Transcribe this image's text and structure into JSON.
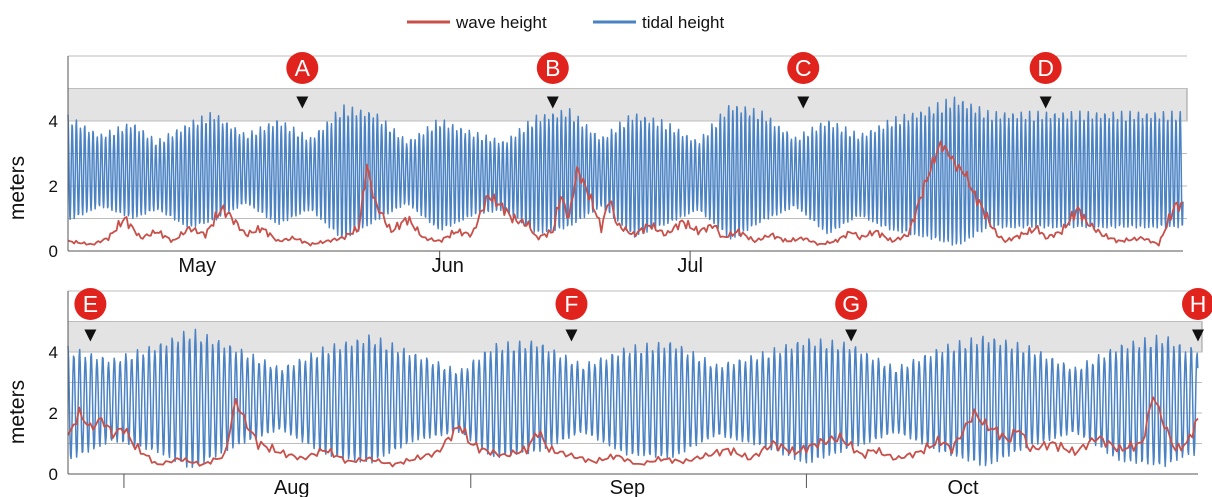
{
  "chart_data": {
    "type": "line",
    "legend": {
      "placement": "top-center",
      "entries": [
        {
          "name": "wave height",
          "color": "#c8504b"
        },
        {
          "name": "tidal height",
          "color": "#4a82c3"
        }
      ]
    },
    "colors": {
      "wave": "#c8504b",
      "tide": "#4a82c3",
      "band": "#e3e3e3",
      "marker": "#e0231c",
      "grid": "#bdbdbd"
    },
    "panels": [
      {
        "ylabel": "meters",
        "ylim": [
          0,
          6
        ],
        "yticks": [
          0,
          2,
          4
        ],
        "band": [
          4,
          5
        ],
        "x_range": [
          "Apr 15",
          "Jul 30"
        ],
        "months": [
          {
            "label": "May",
            "day": 16
          },
          {
            "label": "Jun",
            "day": 47
          },
          {
            "label": "Jul",
            "day": 77
          }
        ],
        "boundaries": [
          46,
          77
        ],
        "markers": [
          {
            "label": "A",
            "day": 29
          },
          {
            "label": "B",
            "day": 60
          },
          {
            "label": "C",
            "day": 91
          },
          {
            "label": "D",
            "day": 121
          }
        ],
        "tide_spring_neap": [
          {
            "day": 0,
            "low": 0.8,
            "high": 4.2
          },
          {
            "day": 4,
            "low": 1.3,
            "high": 3.6
          },
          {
            "day": 8,
            "low": 0.9,
            "high": 4.0
          },
          {
            "day": 11,
            "low": 1.2,
            "high": 3.4
          },
          {
            "day": 15,
            "low": 0.6,
            "high": 4.0
          },
          {
            "day": 18,
            "low": 0.8,
            "high": 4.3
          },
          {
            "day": 22,
            "low": 1.4,
            "high": 3.6
          },
          {
            "day": 26,
            "low": 0.7,
            "high": 4.1
          },
          {
            "day": 30,
            "low": 1.2,
            "high": 3.5
          },
          {
            "day": 34,
            "low": 0.2,
            "high": 4.5
          },
          {
            "day": 38,
            "low": 0.8,
            "high": 4.3
          },
          {
            "day": 42,
            "low": 1.4,
            "high": 3.4
          },
          {
            "day": 46,
            "low": 0.5,
            "high": 4.1
          },
          {
            "day": 50,
            "low": 1.0,
            "high": 3.7
          },
          {
            "day": 54,
            "low": 1.2,
            "high": 3.4
          },
          {
            "day": 58,
            "low": 0.4,
            "high": 4.2
          },
          {
            "day": 62,
            "low": 0.6,
            "high": 4.4
          },
          {
            "day": 66,
            "low": 1.3,
            "high": 3.5
          },
          {
            "day": 70,
            "low": 0.3,
            "high": 4.3
          },
          {
            "day": 74,
            "low": 0.7,
            "high": 4.0
          },
          {
            "day": 78,
            "low": 1.2,
            "high": 3.4
          },
          {
            "day": 82,
            "low": 0.2,
            "high": 4.6
          },
          {
            "day": 86,
            "low": 0.8,
            "high": 4.3
          },
          {
            "day": 90,
            "low": 1.3,
            "high": 3.5
          },
          {
            "day": 94,
            "low": 0.4,
            "high": 4.1
          },
          {
            "day": 98,
            "low": 1.0,
            "high": 3.6
          },
          {
            "day": 102,
            "low": 0.5,
            "high": 4.1
          },
          {
            "day": 106,
            "low": 0.3,
            "high": 4.4
          },
          {
            "day": 110,
            "low": 0.0,
            "high": 4.8
          },
          {
            "day": 114,
            "low": 0.6,
            "high": 4.3
          }
        ],
        "wave": [
          {
            "day": 0,
            "value": 0.3
          },
          {
            "day": 3,
            "value": 0.2
          },
          {
            "day": 5,
            "value": 0.4
          },
          {
            "day": 7,
            "value": 1.0
          },
          {
            "day": 9,
            "value": 0.4
          },
          {
            "day": 11,
            "value": 0.6
          },
          {
            "day": 13,
            "value": 0.3
          },
          {
            "day": 15,
            "value": 0.7
          },
          {
            "day": 17,
            "value": 0.5
          },
          {
            "day": 19,
            "value": 1.3
          },
          {
            "day": 20,
            "value": 1.1
          },
          {
            "day": 22,
            "value": 0.5
          },
          {
            "day": 24,
            "value": 0.7
          },
          {
            "day": 26,
            "value": 0.3
          },
          {
            "day": 28,
            "value": 0.4
          },
          {
            "day": 30,
            "value": 0.2
          },
          {
            "day": 32,
            "value": 0.3
          },
          {
            "day": 34,
            "value": 0.4
          },
          {
            "day": 36,
            "value": 0.7
          },
          {
            "day": 37,
            "value": 2.6
          },
          {
            "day": 38,
            "value": 1.5
          },
          {
            "day": 40,
            "value": 0.6
          },
          {
            "day": 42,
            "value": 1.0
          },
          {
            "day": 44,
            "value": 0.4
          },
          {
            "day": 46,
            "value": 0.3
          },
          {
            "day": 48,
            "value": 0.6
          },
          {
            "day": 50,
            "value": 0.5
          },
          {
            "day": 52,
            "value": 1.7
          },
          {
            "day": 54,
            "value": 1.3
          },
          {
            "day": 55,
            "value": 1.0
          },
          {
            "day": 57,
            "value": 0.8
          },
          {
            "day": 58,
            "value": 0.4
          },
          {
            "day": 60,
            "value": 0.6
          },
          {
            "day": 61,
            "value": 1.7
          },
          {
            "day": 62,
            "value": 1.0
          },
          {
            "day": 63,
            "value": 2.5
          },
          {
            "day": 64,
            "value": 2.0
          },
          {
            "day": 65,
            "value": 1.4
          },
          {
            "day": 66,
            "value": 0.7
          },
          {
            "day": 67,
            "value": 1.6
          },
          {
            "day": 68,
            "value": 0.8
          },
          {
            "day": 70,
            "value": 0.5
          },
          {
            "day": 72,
            "value": 0.8
          },
          {
            "day": 74,
            "value": 0.5
          },
          {
            "day": 76,
            "value": 0.9
          },
          {
            "day": 78,
            "value": 0.6
          },
          {
            "day": 80,
            "value": 0.8
          },
          {
            "day": 81,
            "value": 0.4
          },
          {
            "day": 83,
            "value": 0.6
          },
          {
            "day": 85,
            "value": 0.3
          },
          {
            "day": 87,
            "value": 0.5
          },
          {
            "day": 89,
            "value": 0.3
          },
          {
            "day": 91,
            "value": 0.4
          },
          {
            "day": 93,
            "value": 0.2
          },
          {
            "day": 95,
            "value": 0.3
          },
          {
            "day": 97,
            "value": 0.6
          },
          {
            "day": 98,
            "value": 0.4
          },
          {
            "day": 100,
            "value": 0.6
          },
          {
            "day": 102,
            "value": 0.3
          },
          {
            "day": 104,
            "value": 0.5
          },
          {
            "day": 106,
            "value": 2.0
          },
          {
            "day": 107,
            "value": 2.7
          },
          {
            "day": 108,
            "value": 3.3
          },
          {
            "day": 109,
            "value": 3.0
          },
          {
            "day": 110,
            "value": 2.6
          },
          {
            "day": 111,
            "value": 2.4
          },
          {
            "day": 112,
            "value": 1.8
          },
          {
            "day": 113,
            "value": 1.4
          },
          {
            "day": 114,
            "value": 0.9
          },
          {
            "day": 115,
            "value": 0.5
          },
          {
            "day": 116,
            "value": 0.3
          },
          {
            "day": 118,
            "value": 0.5
          },
          {
            "day": 120,
            "value": 0.7
          },
          {
            "day": 121,
            "value": 0.4
          },
          {
            "day": 123,
            "value": 0.6
          },
          {
            "day": 125,
            "value": 1.3
          },
          {
            "day": 126,
            "value": 0.9
          },
          {
            "day": 128,
            "value": 0.5
          },
          {
            "day": 130,
            "value": 0.3
          },
          {
            "day": 133,
            "value": 0.4
          },
          {
            "day": 135,
            "value": 0.2
          },
          {
            "day": 137,
            "value": 1.4
          }
        ]
      },
      {
        "ylabel": "meters",
        "ylim": [
          0,
          6
        ],
        "yticks": [
          0,
          2,
          4
        ],
        "band": [
          4,
          5
        ],
        "x_range": [
          "Jul 27",
          "Nov 1"
        ],
        "months": [
          {
            "label": "Aug",
            "day": 20
          },
          {
            "label": "Sep",
            "day": 50
          },
          {
            "label": "Oct",
            "day": 80
          }
        ],
        "boundaries": [
          5,
          36,
          66
        ],
        "markers": [
          {
            "label": "E",
            "day": 2
          },
          {
            "label": "F",
            "day": 45
          },
          {
            "label": "G",
            "day": 70
          },
          {
            "label": "H",
            "day": 101
          }
        ],
        "tide_spring_neap": [
          {
            "day": 0,
            "low": 0.3,
            "high": 4.2
          },
          {
            "day": 4,
            "low": 1.0,
            "high": 3.8
          },
          {
            "day": 8,
            "low": 0.6,
            "high": 4.3
          },
          {
            "day": 11,
            "low": 0.0,
            "high": 4.8
          },
          {
            "day": 15,
            "low": 0.8,
            "high": 4.2
          },
          {
            "day": 19,
            "low": 1.4,
            "high": 3.5
          },
          {
            "day": 23,
            "low": 0.5,
            "high": 4.2
          },
          {
            "day": 27,
            "low": 0.2,
            "high": 4.6
          },
          {
            "day": 31,
            "low": 1.0,
            "high": 4.0
          },
          {
            "day": 35,
            "low": 1.3,
            "high": 3.4
          },
          {
            "day": 38,
            "low": 0.4,
            "high": 4.3
          },
          {
            "day": 42,
            "low": 0.6,
            "high": 4.4
          },
          {
            "day": 46,
            "low": 1.3,
            "high": 3.6
          },
          {
            "day": 50,
            "low": 0.5,
            "high": 4.2
          },
          {
            "day": 54,
            "low": 0.4,
            "high": 4.4
          },
          {
            "day": 58,
            "low": 1.2,
            "high": 3.6
          },
          {
            "day": 62,
            "low": 0.8,
            "high": 4.0
          },
          {
            "day": 66,
            "low": 0.2,
            "high": 4.5
          },
          {
            "day": 70,
            "low": 0.7,
            "high": 4.3
          },
          {
            "day": 74,
            "low": 1.3,
            "high": 3.5
          },
          {
            "day": 78,
            "low": 0.6,
            "high": 4.2
          },
          {
            "day": 82,
            "low": 0.1,
            "high": 4.6
          },
          {
            "day": 86,
            "low": 0.8,
            "high": 4.2
          },
          {
            "day": 90,
            "low": 1.3,
            "high": 3.5
          },
          {
            "day": 94,
            "low": 0.3,
            "high": 4.3
          },
          {
            "day": 98,
            "low": 0.1,
            "high": 4.6
          },
          {
            "day": 100,
            "low": 0.5,
            "high": 4.2
          }
        ],
        "wave": [
          {
            "day": 0,
            "value": 1.2
          },
          {
            "day": 1,
            "value": 2.0
          },
          {
            "day": 2,
            "value": 1.5
          },
          {
            "day": 3,
            "value": 1.8
          },
          {
            "day": 4,
            "value": 1.3
          },
          {
            "day": 5,
            "value": 1.5
          },
          {
            "day": 6,
            "value": 0.9
          },
          {
            "day": 7,
            "value": 0.6
          },
          {
            "day": 8,
            "value": 0.3
          },
          {
            "day": 10,
            "value": 0.5
          },
          {
            "day": 12,
            "value": 0.3
          },
          {
            "day": 14,
            "value": 0.6
          },
          {
            "day": 15,
            "value": 2.4
          },
          {
            "day": 16,
            "value": 1.6
          },
          {
            "day": 17,
            "value": 1.0
          },
          {
            "day": 19,
            "value": 0.7
          },
          {
            "day": 21,
            "value": 0.5
          },
          {
            "day": 23,
            "value": 0.8
          },
          {
            "day": 25,
            "value": 0.4
          },
          {
            "day": 27,
            "value": 0.5
          },
          {
            "day": 29,
            "value": 0.3
          },
          {
            "day": 31,
            "value": 0.5
          },
          {
            "day": 33,
            "value": 0.7
          },
          {
            "day": 35,
            "value": 1.6
          },
          {
            "day": 36,
            "value": 1.0
          },
          {
            "day": 37,
            "value": 0.8
          },
          {
            "day": 39,
            "value": 0.6
          },
          {
            "day": 41,
            "value": 0.8
          },
          {
            "day": 42,
            "value": 1.4
          },
          {
            "day": 43,
            "value": 0.8
          },
          {
            "day": 45,
            "value": 0.6
          },
          {
            "day": 47,
            "value": 0.4
          },
          {
            "day": 49,
            "value": 0.6
          },
          {
            "day": 51,
            "value": 0.3
          },
          {
            "day": 53,
            "value": 0.5
          },
          {
            "day": 55,
            "value": 0.4
          },
          {
            "day": 57,
            "value": 0.6
          },
          {
            "day": 59,
            "value": 0.8
          },
          {
            "day": 61,
            "value": 0.5
          },
          {
            "day": 63,
            "value": 1.0
          },
          {
            "day": 65,
            "value": 0.7
          },
          {
            "day": 67,
            "value": 1.0
          },
          {
            "day": 69,
            "value": 1.2
          },
          {
            "day": 71,
            "value": 0.6
          },
          {
            "day": 72,
            "value": 0.8
          },
          {
            "day": 74,
            "value": 0.5
          },
          {
            "day": 76,
            "value": 0.7
          },
          {
            "day": 78,
            "value": 1.1
          },
          {
            "day": 79,
            "value": 0.8
          },
          {
            "day": 81,
            "value": 2.0
          },
          {
            "day": 82,
            "value": 1.6
          },
          {
            "day": 83,
            "value": 1.4
          },
          {
            "day": 84,
            "value": 1.1
          },
          {
            "day": 85,
            "value": 1.5
          },
          {
            "day": 86,
            "value": 0.8
          },
          {
            "day": 88,
            "value": 1.0
          },
          {
            "day": 90,
            "value": 0.7
          },
          {
            "day": 92,
            "value": 1.2
          },
          {
            "day": 94,
            "value": 0.8
          },
          {
            "day": 96,
            "value": 1.0
          },
          {
            "day": 97,
            "value": 2.6
          },
          {
            "day": 98,
            "value": 1.6
          },
          {
            "day": 99,
            "value": 0.8
          },
          {
            "day": 100,
            "value": 1.0
          },
          {
            "day": 101,
            "value": 1.8
          }
        ]
      }
    ]
  }
}
